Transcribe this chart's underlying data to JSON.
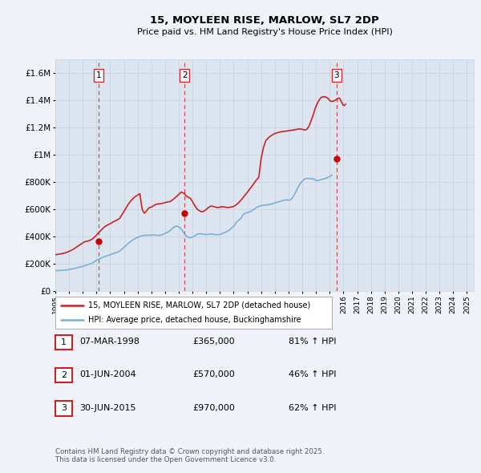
{
  "title": "15, MOYLEEN RISE, MARLOW, SL7 2DP",
  "subtitle": "Price paid vs. HM Land Registry's House Price Index (HPI)",
  "bg_color": "#f0f4fa",
  "plot_bg_color": "#dde6f0",
  "grid_color": "#c8d4e0",
  "hpi_color": "#7ab0d4",
  "price_color": "#cc2222",
  "sale_marker_color": "#cc0000",
  "dashed_line_color": "#cc3333",
  "ylim": [
    0,
    1700000
  ],
  "yticks": [
    0,
    200000,
    400000,
    600000,
    800000,
    1000000,
    1200000,
    1400000,
    1600000
  ],
  "ytick_labels": [
    "£0",
    "£200K",
    "£400K",
    "£600K",
    "£800K",
    "£1M",
    "£1.2M",
    "£1.4M",
    "£1.6M"
  ],
  "xmin": 1995.0,
  "xmax": 2025.5,
  "sale_dates": [
    1998.17,
    2004.42,
    2015.5
  ],
  "sale_prices": [
    365000,
    570000,
    970000
  ],
  "sale_labels": [
    "1",
    "2",
    "3"
  ],
  "legend_line1": "15, MOYLEEN RISE, MARLOW, SL7 2DP (detached house)",
  "legend_line2": "HPI: Average price, detached house, Buckinghamshire",
  "table_rows": [
    {
      "label": "1",
      "date": "07-MAR-1998",
      "price": "£365,000",
      "pct": "81% ↑ HPI"
    },
    {
      "label": "2",
      "date": "01-JUN-2004",
      "price": "£570,000",
      "pct": "46% ↑ HPI"
    },
    {
      "label": "3",
      "date": "30-JUN-2015",
      "price": "£970,000",
      "pct": "62% ↑ HPI"
    }
  ],
  "footer": "Contains HM Land Registry data © Crown copyright and database right 2025.\nThis data is licensed under the Open Government Licence v3.0.",
  "hpi_data_monthly": {
    "start_year": 1995,
    "start_month": 1,
    "values": [
      148000,
      148500,
      149000,
      149500,
      150000,
      150500,
      151000,
      151500,
      152000,
      153000,
      154000,
      155000,
      157000,
      158500,
      160000,
      161500,
      163000,
      165000,
      167000,
      169000,
      172000,
      174000,
      176000,
      178000,
      180000,
      182000,
      185000,
      188000,
      191000,
      194000,
      197000,
      200000,
      203000,
      207000,
      213000,
      219000,
      224000,
      228000,
      232000,
      236000,
      240000,
      244000,
      248000,
      252000,
      255000,
      257000,
      260000,
      262000,
      265000,
      268000,
      272000,
      275000,
      278000,
      280000,
      283000,
      287000,
      290000,
      297000,
      305000,
      312000,
      320000,
      327000,
      335000,
      342000,
      350000,
      356000,
      363000,
      369000,
      375000,
      380000,
      385000,
      389000,
      393000,
      396000,
      400000,
      402000,
      405000,
      407000,
      408000,
      408000,
      408000,
      408000,
      408000,
      408000,
      410000,
      410000,
      410000,
      410000,
      408000,
      408000,
      407000,
      407000,
      408000,
      410000,
      415000,
      418000,
      422000,
      426000,
      430000,
      434000,
      440000,
      447000,
      455000,
      462000,
      470000,
      472000,
      475000,
      473000,
      470000,
      463000,
      455000,
      445000,
      430000,
      418000,
      405000,
      400000,
      395000,
      392000,
      390000,
      392000,
      395000,
      399000,
      405000,
      410000,
      415000,
      417000,
      420000,
      419000,
      418000,
      416000,
      415000,
      414000,
      413000,
      413000,
      415000,
      416000,
      418000,
      417000,
      415000,
      414000,
      413000,
      413000,
      413000,
      413000,
      415000,
      416000,
      420000,
      424000,
      428000,
      431000,
      435000,
      440000,
      445000,
      452000,
      460000,
      467000,
      475000,
      482000,
      500000,
      508000,
      515000,
      522000,
      530000,
      540000,
      558000,
      563000,
      568000,
      572000,
      575000,
      577000,
      580000,
      584000,
      590000,
      595000,
      600000,
      606000,
      612000,
      616000,
      620000,
      622000,
      625000,
      626000,
      628000,
      629000,
      630000,
      631000,
      632000,
      633000,
      635000,
      637000,
      640000,
      642000,
      645000,
      648000,
      650000,
      653000,
      655000,
      657000,
      660000,
      662000,
      665000,
      666000,
      668000,
      667000,
      665000,
      666000,
      670000,
      678000,
      690000,
      705000,
      720000,
      736000,
      755000,
      770000,
      785000,
      795000,
      805000,
      812000,
      820000,
      822000,
      825000,
      824000,
      825000,
      823000,
      825000,
      822000,
      820000,
      815000,
      810000,
      810000,
      810000,
      812000,
      815000,
      817000,
      820000,
      822000,
      825000,
      827000,
      830000,
      835000,
      840000,
      843000,
      850000
    ]
  },
  "price_data_monthly": {
    "start_year": 1995,
    "start_month": 1,
    "values": [
      265000,
      266000,
      268000,
      269000,
      271000,
      272000,
      274000,
      276000,
      278000,
      280000,
      283000,
      286000,
      290000,
      294000,
      298000,
      302000,
      307000,
      312000,
      318000,
      324000,
      330000,
      335000,
      341000,
      346000,
      352000,
      357000,
      362000,
      363000,
      365000,
      367000,
      370000,
      374000,
      378000,
      384000,
      392000,
      400000,
      410000,
      419000,
      428000,
      437000,
      445000,
      453000,
      462000,
      469000,
      475000,
      480000,
      485000,
      489000,
      493000,
      498000,
      503000,
      508000,
      512000,
      516000,
      520000,
      525000,
      530000,
      542000,
      555000,
      568000,
      582000,
      596000,
      610000,
      624000,
      638000,
      649000,
      660000,
      669000,
      678000,
      685000,
      692000,
      698000,
      703000,
      708000,
      713000,
      650000,
      600000,
      580000,
      570000,
      580000,
      590000,
      600000,
      610000,
      612000,
      615000,
      620000,
      625000,
      630000,
      635000,
      637000,
      638000,
      638000,
      640000,
      641000,
      643000,
      645000,
      648000,
      650000,
      652000,
      653000,
      655000,
      658000,
      665000,
      670000,
      678000,
      685000,
      692000,
      700000,
      708000,
      716000,
      725000,
      722000,
      718000,
      713000,
      700000,
      694000,
      688000,
      684000,
      680000,
      668000,
      655000,
      640000,
      625000,
      612000,
      600000,
      594000,
      588000,
      584000,
      580000,
      582000,
      585000,
      591000,
      598000,
      605000,
      612000,
      617000,
      622000,
      621000,
      620000,
      617000,
      615000,
      613000,
      612000,
      612000,
      615000,
      615000,
      618000,
      617000,
      615000,
      614000,
      612000,
      612000,
      613000,
      614000,
      615000,
      617000,
      620000,
      624000,
      630000,
      637000,
      645000,
      652000,
      662000,
      671000,
      682000,
      692000,
      703000,
      713000,
      724000,
      734000,
      745000,
      756000,
      768000,
      780000,
      792000,
      803000,
      815000,
      825000,
      835000,
      900000,
      970000,
      1010000,
      1050000,
      1075000,
      1100000,
      1110000,
      1120000,
      1127000,
      1135000,
      1140000,
      1145000,
      1150000,
      1155000,
      1157000,
      1160000,
      1162000,
      1165000,
      1166000,
      1168000,
      1169000,
      1170000,
      1171000,
      1172000,
      1173000,
      1175000,
      1176000,
      1178000,
      1179000,
      1180000,
      1182000,
      1183000,
      1184000,
      1186000,
      1187000,
      1188000,
      1187000,
      1185000,
      1183000,
      1180000,
      1182000,
      1185000,
      1197000,
      1210000,
      1232000,
      1255000,
      1278000,
      1305000,
      1330000,
      1355000,
      1372000,
      1390000,
      1402000,
      1415000,
      1420000,
      1425000,
      1422000,
      1425000,
      1420000,
      1415000,
      1408000,
      1395000,
      1392000,
      1390000,
      1392000,
      1395000,
      1400000,
      1405000,
      1410000,
      1415000,
      1410000,
      1390000,
      1375000,
      1360000,
      1362000,
      1370000
    ]
  }
}
